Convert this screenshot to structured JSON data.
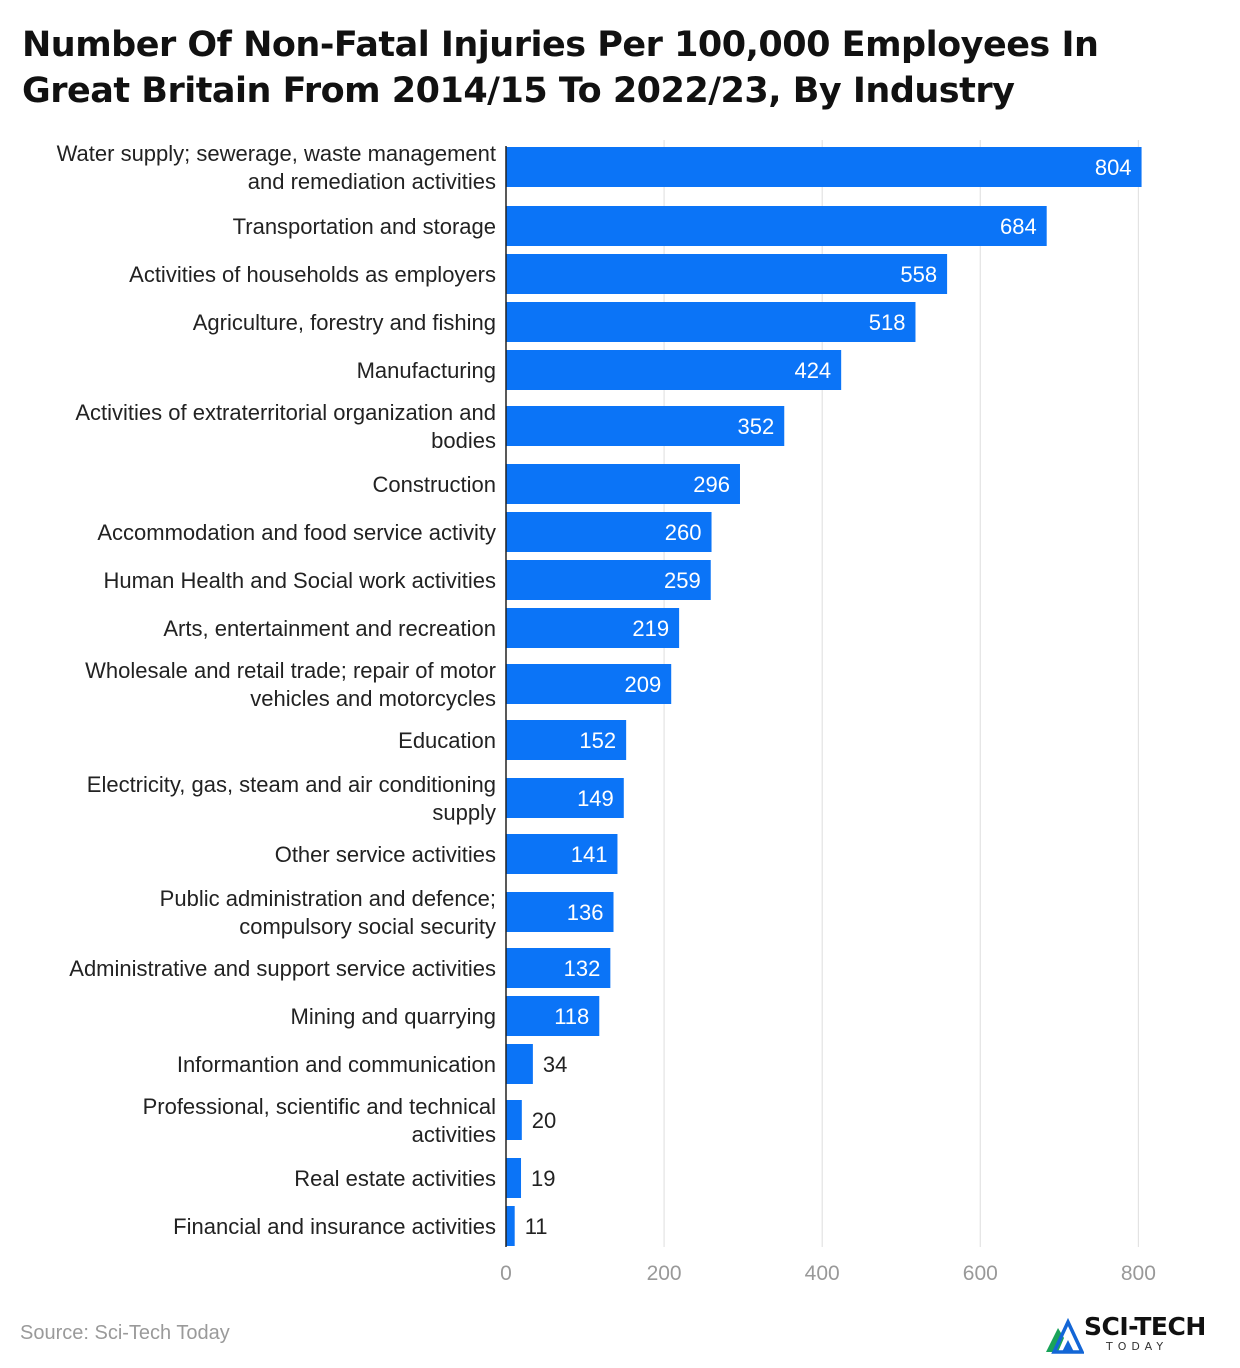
{
  "title": "Number Of Non-Fatal Injuries Per 100,000 Employees In Great Britain From 2014/15 To 2022/23, By Industry",
  "source": "Source: Sci-Tech Today",
  "logo": {
    "text": "SCI-TECH",
    "sub": "TODAY"
  },
  "colors": {
    "bar": "#0b74f7",
    "grid": "#e3e3e3",
    "axis": "#222222"
  },
  "chart_data": {
    "type": "bar",
    "orientation": "horizontal",
    "title": "Number Of Non-Fatal Injuries Per 100,000 Employees In Great Britain From 2014/15 To 2022/23, By Industry",
    "xlabel": "",
    "ylabel": "",
    "xlim": [
      0,
      850
    ],
    "ticks": [
      0,
      200,
      400,
      600,
      800
    ],
    "grid": true,
    "categories": [
      [
        "Water supply; sewerage, waste management",
        "and remediation activities"
      ],
      [
        "Transportation and storage"
      ],
      [
        "Activities of households as employers"
      ],
      [
        "Agriculture, forestry and fishing"
      ],
      [
        "Manufacturing"
      ],
      [
        "Activities of extraterritorial organization and",
        "bodies"
      ],
      [
        "Construction"
      ],
      [
        "Accommodation and food service activity"
      ],
      [
        "Human Health and Social work activities"
      ],
      [
        "Arts, entertainment and recreation"
      ],
      [
        "Wholesale and retail trade; repair of motor",
        "vehicles and motorcycles"
      ],
      [
        "Education"
      ],
      [
        "Electricity, gas, steam and air conditioning",
        "supply"
      ],
      [
        "Other service activities"
      ],
      [
        "Public administration and defence;",
        "compulsory social security"
      ],
      [
        "Administrative and support service activities"
      ],
      [
        "Mining and quarrying"
      ],
      [
        "Informantion and communication"
      ],
      [
        "Professional, scientific and technical",
        "activities"
      ],
      [
        "Real estate activities"
      ],
      [
        "Financial and insurance activities"
      ]
    ],
    "values": [
      804,
      684,
      558,
      518,
      424,
      352,
      296,
      260,
      259,
      219,
      209,
      152,
      149,
      141,
      136,
      132,
      118,
      34,
      20,
      19,
      11
    ]
  }
}
